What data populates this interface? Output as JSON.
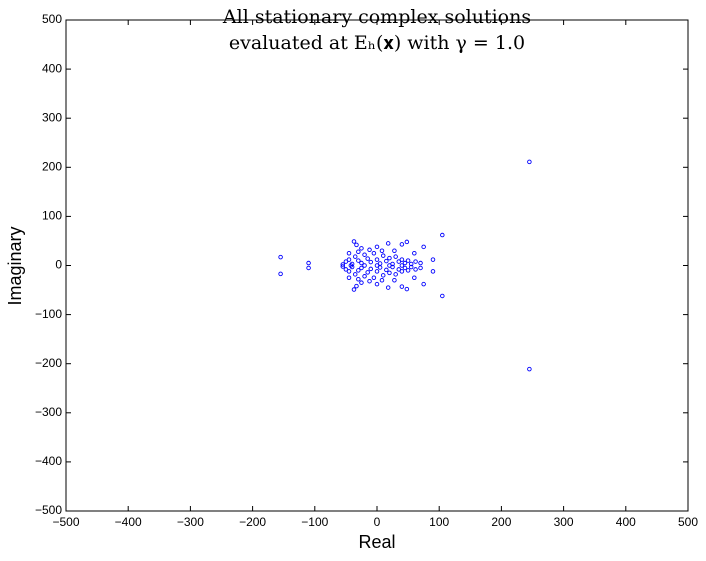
{
  "chart_data": {
    "type": "scatter",
    "title": [
      "All stationary complex solutions",
      "evaluated at Eₕ(𝐱) with γ = 1.0"
    ],
    "xlabel": "Real",
    "ylabel": "Imaginary",
    "color": "#0000ff",
    "x": [
      245,
      245,
      105,
      105,
      -155,
      -155,
      -110,
      -110,
      75,
      75,
      48,
      48,
      -37,
      -37,
      -33,
      -33,
      -25,
      -25,
      0,
      0,
      18,
      18,
      40,
      40,
      60,
      60,
      -45,
      -45,
      90,
      90,
      70,
      70,
      -55,
      -55,
      -50,
      -50,
      -45,
      -45,
      -40,
      -40,
      -35,
      -35,
      -30,
      -30,
      -25,
      -25,
      -20,
      -20,
      -15,
      -15,
      -10,
      -10,
      -5,
      -5,
      0,
      0,
      5,
      5,
      10,
      10,
      15,
      15,
      20,
      20,
      25,
      25,
      30,
      30,
      35,
      35,
      40,
      40,
      45,
      45,
      50,
      50,
      55,
      55,
      62,
      62,
      -42,
      -20,
      0,
      20,
      40,
      -30,
      -30,
      8,
      8,
      28,
      28,
      -12,
      -12
    ],
    "y": [
      211,
      -211,
      62,
      -62,
      17,
      -17,
      5,
      -5,
      38,
      -38,
      48,
      -48,
      49,
      -49,
      42,
      -42,
      35,
      -35,
      38,
      -38,
      45,
      -45,
      43,
      -43,
      25,
      -25,
      25,
      -25,
      12,
      -12,
      5,
      -5,
      2,
      -2,
      8,
      -8,
      12,
      -12,
      3,
      -3,
      18,
      -18,
      10,
      -10,
      5,
      -5,
      22,
      -22,
      14,
      -14,
      7,
      -7,
      25,
      -25,
      12,
      -12,
      4,
      -4,
      20,
      -20,
      9,
      -9,
      15,
      -15,
      3,
      -3,
      18,
      -18,
      8,
      -8,
      12,
      -12,
      5,
      -5,
      10,
      -10,
      3,
      -3,
      8,
      -8,
      0,
      0,
      0,
      0,
      0,
      28,
      -28,
      30,
      -30,
      30,
      -30,
      32,
      -32
    ],
    "xlim": [
      -500,
      500
    ],
    "ylim": [
      -500,
      500
    ],
    "xticks": [
      {
        "value": -500,
        "label": "−500"
      },
      {
        "value": -400,
        "label": "−400"
      },
      {
        "value": -300,
        "label": "−300"
      },
      {
        "value": -200,
        "label": "−200"
      },
      {
        "value": -100,
        "label": "−100"
      },
      0,
      100,
      200,
      300,
      400,
      500
    ],
    "yticks": [
      {
        "value": -500,
        "label": "−500"
      },
      {
        "value": -400,
        "label": "−400"
      },
      {
        "value": -300,
        "label": "−300"
      },
      {
        "value": -200,
        "label": "−200"
      },
      {
        "value": -100,
        "label": "−100"
      },
      0,
      100,
      200,
      300,
      400,
      500
    ],
    "grid": false
  }
}
